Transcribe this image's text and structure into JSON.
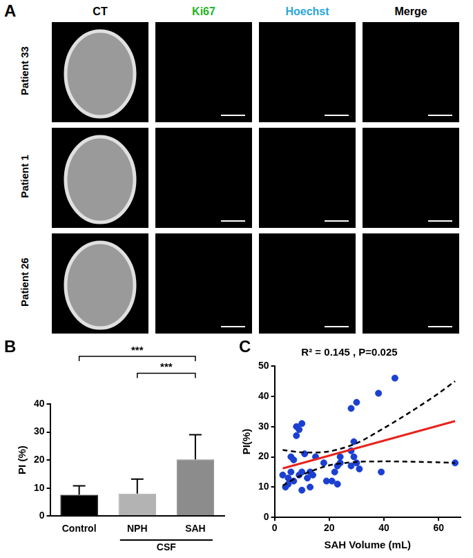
{
  "panel_a": {
    "label": "A",
    "columns": [
      "CT",
      "Ki67",
      "Hoechst",
      "Merge"
    ],
    "colors": [
      "#000000",
      "#22b522",
      "#2aa7d8",
      "#000000"
    ],
    "rows": [
      "Patient 33",
      "Patient 1",
      "Patient 26"
    ]
  },
  "chart_data": [
    {
      "label": "B",
      "type": "bar",
      "categories": [
        "Control",
        "NPH",
        "SAH"
      ],
      "values": [
        7.6,
        8.0,
        20.2
      ],
      "errors": [
        3.2,
        5.2,
        8.8
      ],
      "colors": [
        "#000000",
        "#b3b3b3",
        "#8c8c8c"
      ],
      "y_label": "PI (%)",
      "ylim": [
        0,
        40
      ],
      "yticks": [
        0,
        10,
        20,
        30,
        40
      ],
      "grid": false,
      "annotations": [
        {
          "text": "***",
          "from": "Control",
          "to": "SAH",
          "y": 57
        },
        {
          "text": "***",
          "from": "NPH",
          "to": "SAH",
          "y": 51
        }
      ],
      "group": {
        "text": "CSF",
        "categories": [
          "NPH",
          "SAH"
        ]
      }
    },
    {
      "label": "C",
      "type": "scatter",
      "title": "R² = 0.145 , P=0.025",
      "x_label": "SAH Volume (mL)",
      "y_label": "PI(%)",
      "xlim": [
        0,
        68
      ],
      "xticks": [
        0,
        20,
        40,
        60
      ],
      "ylim": [
        0,
        50
      ],
      "yticks": [
        0,
        10,
        20,
        30,
        40,
        50
      ],
      "grid": false,
      "series": [
        {
          "type": "scatter",
          "color": "#1a3fd1",
          "marker": "circle",
          "x": [
            3,
            4,
            5,
            5,
            6,
            6,
            7,
            7,
            8,
            8,
            9,
            9,
            10,
            10,
            10,
            11,
            12,
            13,
            13,
            14,
            15,
            18,
            19,
            21,
            22,
            23,
            23,
            24,
            24,
            28,
            28,
            28,
            29,
            29,
            30,
            30,
            31,
            38,
            39,
            44,
            66
          ],
          "y": [
            14,
            10,
            13,
            11,
            20,
            15,
            19,
            12,
            30,
            27,
            29,
            14,
            31,
            9,
            15,
            21,
            13,
            15,
            10,
            14,
            20,
            18,
            12,
            12,
            15,
            11,
            17,
            20,
            18,
            22,
            17,
            36,
            20,
            25,
            38,
            18,
            16,
            41,
            15,
            46,
            18
          ]
        },
        {
          "type": "line",
          "color": "#e8231c",
          "line_style": "solid",
          "x": [
            3,
            66
          ],
          "y": [
            16.2,
            31.8
          ]
        },
        {
          "type": "line",
          "color": "#000000",
          "line_style": "dashed",
          "x": [
            3,
            10,
            20,
            30,
            40,
            50,
            60,
            66
          ],
          "y": [
            22.3,
            21.5,
            21.8,
            24.5,
            29.5,
            35,
            41,
            45
          ]
        },
        {
          "type": "line",
          "color": "#000000",
          "line_style": "dashed",
          "x": [
            3,
            10,
            20,
            30,
            40,
            50,
            60,
            66
          ],
          "y": [
            10.5,
            14,
            17.2,
            18.3,
            18.5,
            18.4,
            18.2,
            18
          ]
        }
      ]
    }
  ]
}
